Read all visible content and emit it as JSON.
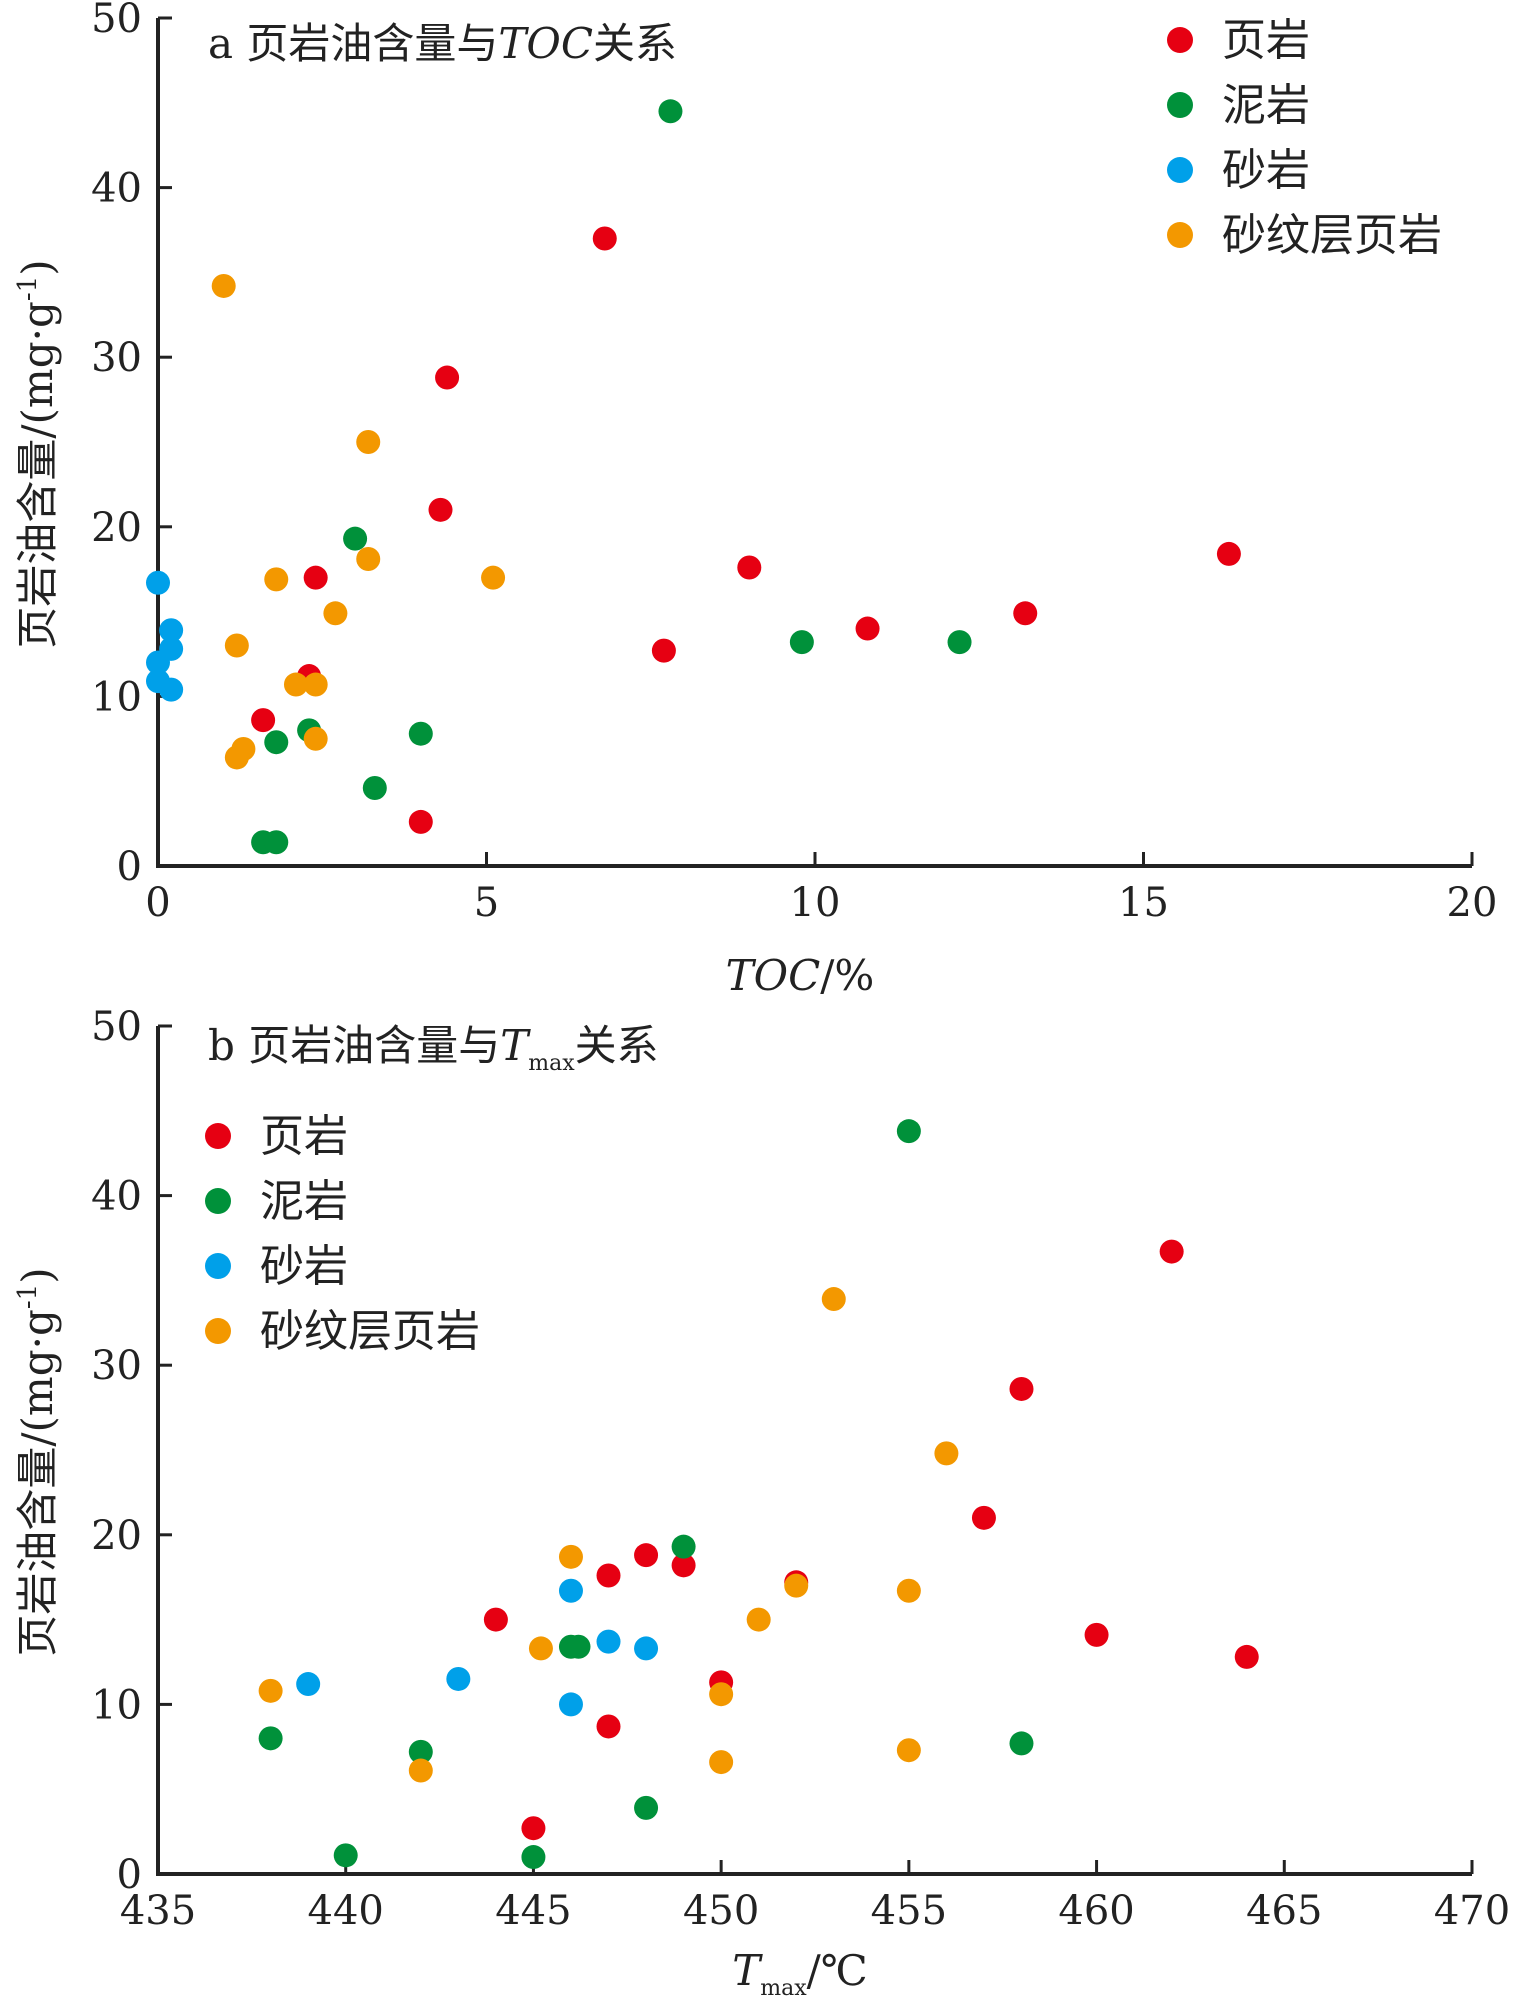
{
  "colors": {
    "页岩": "#e60012",
    "泥岩": "#00913a",
    "砂岩": "#00a0e9",
    "砂纹层页岩": "#f39800"
  },
  "chart_data": [
    {
      "type": "scatter",
      "panel": "a",
      "title": "a 页岩油含量与TOC关系",
      "title_prefix": "a 页岩油含量与",
      "title_var": "TOC",
      "title_suffix": "关系",
      "xlabel": "TOC/%",
      "xlabel_var": "TOC",
      "xlabel_unit": "/%",
      "ylabel": "页岩油含量/(mg·g-1)",
      "ylabel_main": "页岩油含量/(mg·g",
      "ylabel_sup": "-1",
      "ylabel_end": ")",
      "xlim": [
        0,
        20
      ],
      "ylim": [
        0,
        50
      ],
      "xticks": [
        "0",
        "5",
        "10",
        "15",
        "20"
      ],
      "yticks": [
        "0",
        "10",
        "20",
        "30",
        "40",
        "50"
      ],
      "legend_position": "top-right",
      "legend": [
        "页岩",
        "泥岩",
        "砂岩",
        "砂纹层页岩"
      ],
      "series": [
        {
          "name": "页岩",
          "color": "#e60012",
          "points": [
            [
              6.8,
              37.0
            ],
            [
              4.4,
              28.8
            ],
            [
              4.3,
              21.0
            ],
            [
              2.4,
              17.0
            ],
            [
              2.3,
              11.2
            ],
            [
              1.6,
              8.6
            ],
            [
              4.0,
              2.6
            ],
            [
              7.7,
              12.7
            ],
            [
              9.0,
              17.6
            ],
            [
              10.8,
              14.0
            ],
            [
              13.2,
              14.9
            ],
            [
              16.3,
              18.4
            ]
          ]
        },
        {
          "name": "泥岩",
          "color": "#00913a",
          "points": [
            [
              7.8,
              44.5
            ],
            [
              3.0,
              19.3
            ],
            [
              1.8,
              7.3
            ],
            [
              2.3,
              8.0
            ],
            [
              4.0,
              7.8
            ],
            [
              3.3,
              4.6
            ],
            [
              1.6,
              1.4
            ],
            [
              1.8,
              1.4
            ],
            [
              9.8,
              13.2
            ],
            [
              12.2,
              13.2
            ]
          ]
        },
        {
          "name": "砂岩",
          "color": "#00a0e9",
          "points": [
            [
              0.0,
              16.7
            ],
            [
              0.2,
              13.9
            ],
            [
              0.2,
              12.8
            ],
            [
              0.0,
              12.0
            ],
            [
              0.0,
              10.9
            ],
            [
              0.2,
              10.4
            ]
          ]
        },
        {
          "name": "砂纹层页岩",
          "color": "#f39800",
          "points": [
            [
              1.0,
              34.2
            ],
            [
              3.2,
              25.0
            ],
            [
              3.2,
              18.1
            ],
            [
              1.8,
              16.9
            ],
            [
              5.1,
              17.0
            ],
            [
              2.7,
              14.9
            ],
            [
              1.2,
              13.0
            ],
            [
              2.1,
              10.7
            ],
            [
              2.4,
              10.7
            ],
            [
              2.4,
              7.5
            ],
            [
              1.3,
              6.9
            ],
            [
              1.2,
              6.4
            ]
          ]
        }
      ]
    },
    {
      "type": "scatter",
      "panel": "b",
      "title": "b 页岩油含量与Tmax关系",
      "title_prefix": "b 页岩油含量与",
      "title_var": "T",
      "title_sub": "max",
      "title_suffix": "关系",
      "xlabel": "Tmax/℃",
      "xlabel_var": "T",
      "xlabel_sub": "max",
      "xlabel_unit": "/℃",
      "ylabel": "页岩油含量/(mg·g-1)",
      "ylabel_main": "页岩油含量/(mg·g",
      "ylabel_sup": "-1",
      "ylabel_end": ")",
      "xlim": [
        435,
        470
      ],
      "ylim": [
        0,
        50
      ],
      "xticks": [
        "435",
        "440",
        "445",
        "450",
        "455",
        "460",
        "465",
        "470"
      ],
      "yticks": [
        "0",
        "10",
        "20",
        "30",
        "40",
        "50"
      ],
      "legend_position": "top-left",
      "legend": [
        "页岩",
        "泥岩",
        "砂岩",
        "砂纹层页岩"
      ],
      "series": [
        {
          "name": "页岩",
          "color": "#e60012",
          "points": [
            [
              462,
              36.7
            ],
            [
              458,
              28.6
            ],
            [
              457,
              21.0
            ],
            [
              449,
              18.2
            ],
            [
              448,
              18.8
            ],
            [
              447,
              17.6
            ],
            [
              452,
              17.2
            ],
            [
              444,
              15.0
            ],
            [
              460,
              14.1
            ],
            [
              464,
              12.8
            ],
            [
              450,
              11.3
            ],
            [
              447,
              8.7
            ],
            [
              445,
              2.7
            ]
          ]
        },
        {
          "name": "泥岩",
          "color": "#00913a",
          "points": [
            [
              455,
              43.8
            ],
            [
              449,
              19.3
            ],
            [
              446,
              13.4
            ],
            [
              446.2,
              13.4
            ],
            [
              438,
              8.0
            ],
            [
              442,
              7.2
            ],
            [
              458,
              7.7
            ],
            [
              448,
              3.9
            ],
            [
              440,
              1.1
            ],
            [
              445,
              1.0
            ]
          ]
        },
        {
          "name": "砂岩",
          "color": "#00a0e9",
          "points": [
            [
              446,
              16.7
            ],
            [
              447,
              13.7
            ],
            [
              448,
              13.3
            ],
            [
              439,
              11.2
            ],
            [
              443,
              11.5
            ],
            [
              446,
              10.0
            ]
          ]
        },
        {
          "name": "砂纹层页岩",
          "color": "#f39800",
          "points": [
            [
              453,
              33.9
            ],
            [
              456,
              24.8
            ],
            [
              446,
              18.7
            ],
            [
              452,
              17.0
            ],
            [
              455,
              16.7
            ],
            [
              451,
              15.0
            ],
            [
              445.2,
              13.3
            ],
            [
              438,
              10.8
            ],
            [
              450,
              10.6
            ],
            [
              442,
              6.1
            ],
            [
              450,
              6.6
            ],
            [
              455,
              7.3
            ]
          ]
        }
      ]
    }
  ]
}
